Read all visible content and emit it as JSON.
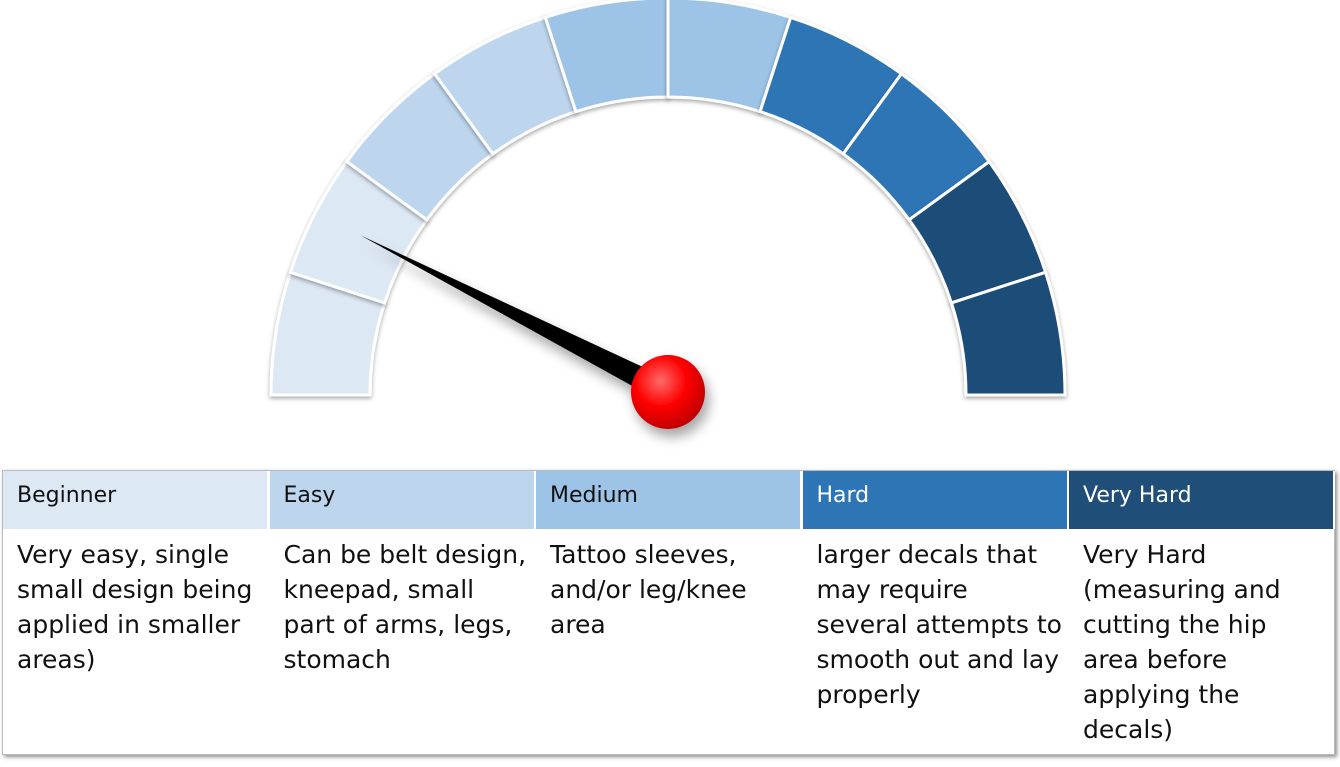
{
  "gauge": {
    "segment_colors": [
      "#dde8f5",
      "#dde8f5",
      "#bdd6ee",
      "#bdd6ee",
      "#9dc3e6",
      "#9dc3e6",
      "#2e75b6",
      "#2e75b6",
      "#1f4e79",
      "#1f4e79"
    ],
    "needle_level": 0.15,
    "needle_color": "#000000",
    "hub_color": "#ff0000"
  },
  "levels": [
    {
      "label": "Beginner",
      "color": "#dde8f5",
      "text_color": "#111111",
      "description": "Very easy, single small design being applied in smaller areas)"
    },
    {
      "label": "Easy",
      "color": "#bdd6ee",
      "text_color": "#111111",
      "description": "Can be belt design, kneepad, small part of arms, legs, stomach"
    },
    {
      "label": "Medium",
      "color": "#9dc3e6",
      "text_color": "#111111",
      "description": "Tattoo sleeves, and/or leg/knee area"
    },
    {
      "label": "Hard",
      "color": "#2e75b6",
      "text_color": "#ffffff",
      "description": "larger decals that may require several attempts to smooth out and lay properly"
    },
    {
      "label": "Very Hard",
      "color": "#1f4e79",
      "text_color": "#ffffff",
      "description": "Very Hard (measuring and cutting the hip area before applying the decals)"
    }
  ]
}
